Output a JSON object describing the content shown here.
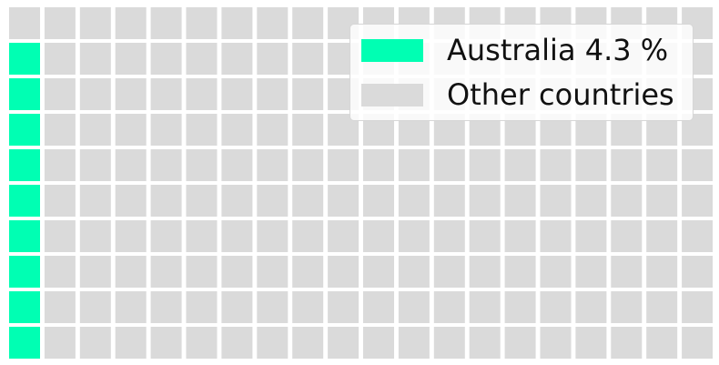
{
  "chart_data": {
    "type": "waffle",
    "rows": 10,
    "columns": 20,
    "highlight_cells": 9,
    "fill_order": "column-major, starting bottom-left",
    "legend_position": "upper-right",
    "series": [
      {
        "name": "Australia 4.3 %",
        "value": 4.3,
        "color": "#00ffb3"
      },
      {
        "name": "Other countries",
        "value": 95.7,
        "color": "#dadada"
      }
    ]
  }
}
